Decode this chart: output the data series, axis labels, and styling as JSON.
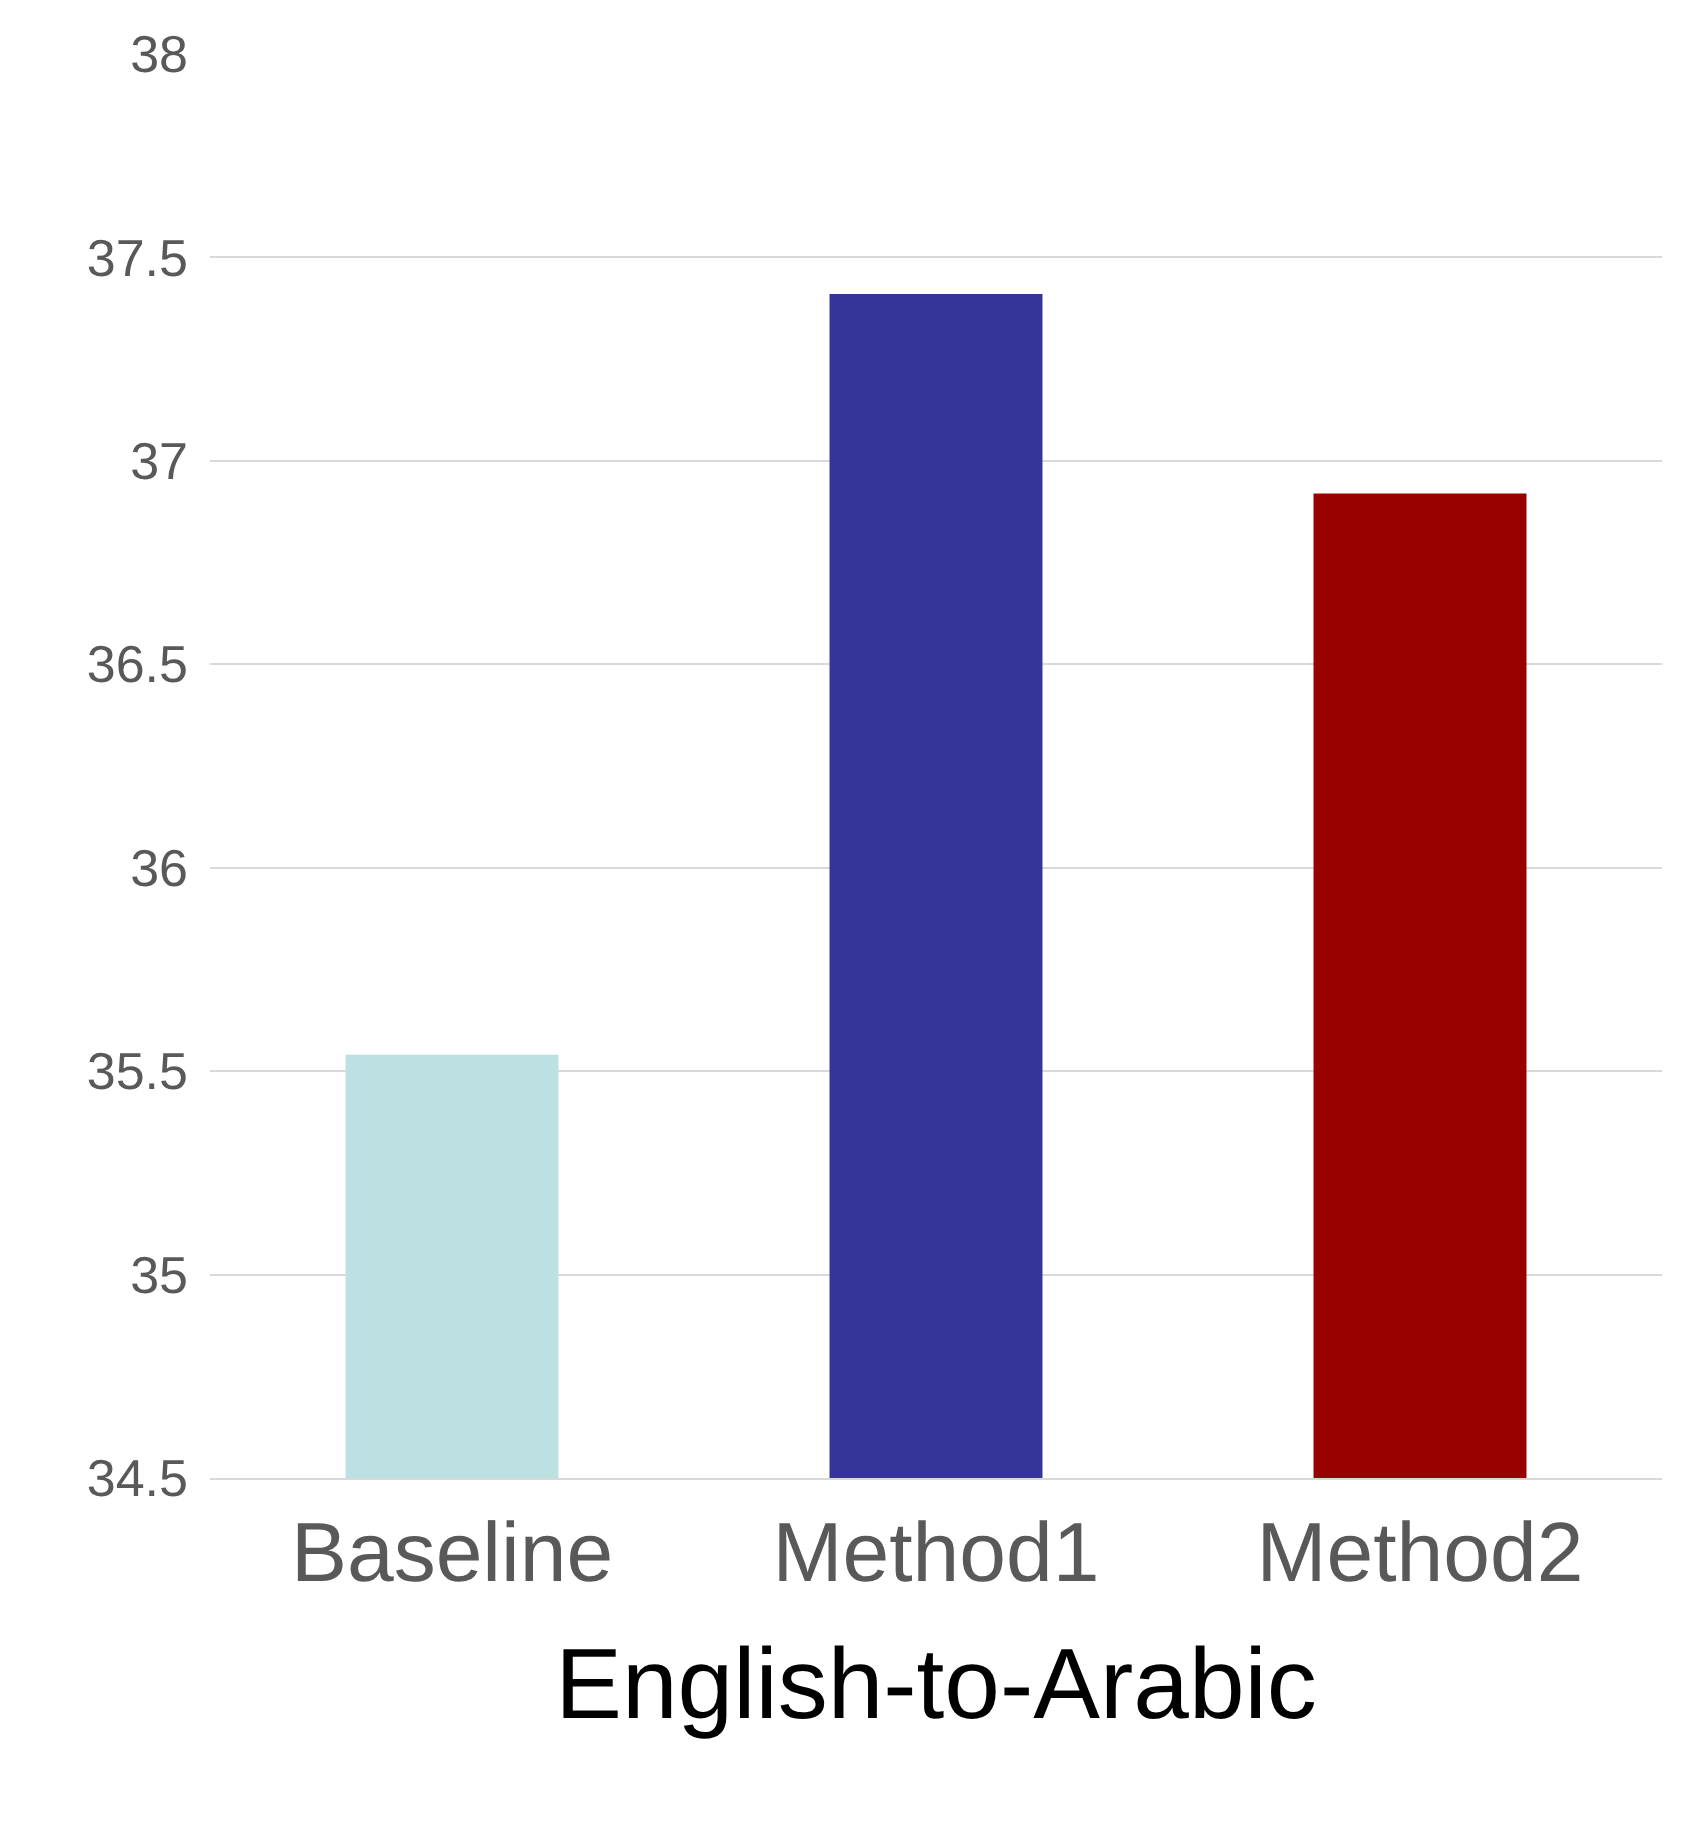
{
  "chart_data": {
    "type": "bar",
    "xlabel": "English-to-Arabic",
    "categories": [
      "Baseline",
      "Method1",
      "Method2"
    ],
    "values": [
      35.54,
      37.41,
      36.92
    ],
    "colors": [
      "#bde0e3",
      "#353598",
      "#990000"
    ],
    "ylim": [
      34.5,
      38
    ],
    "yticks": [
      34.5,
      35,
      35.5,
      36,
      36.5,
      37,
      37.5,
      38
    ],
    "grid": "y"
  }
}
